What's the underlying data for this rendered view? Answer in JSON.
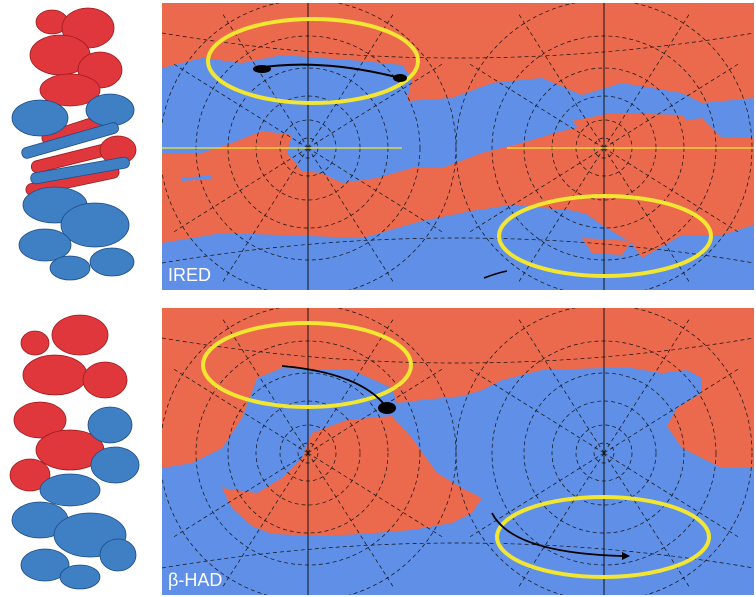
{
  "panels": [
    {
      "label": "IRED",
      "colors": {
        "domain_a": "#e0373c",
        "domain_b": "#3f7fc4",
        "map_red": "#eb6a4e",
        "map_blue": "#5f8fe6",
        "highlight": "#f2e632",
        "trajectory": "#000000"
      }
    },
    {
      "label": "β-HAD",
      "colors": {
        "domain_a": "#e0373c",
        "domain_b": "#3f7fc4",
        "map_red": "#eb6a4e",
        "map_blue": "#5f8fe6",
        "highlight": "#f2e632",
        "trajectory": "#000000"
      }
    }
  ],
  "icons": {
    "structure": "protein-ribbon-structure",
    "projection": "stereographic-angle-map"
  }
}
